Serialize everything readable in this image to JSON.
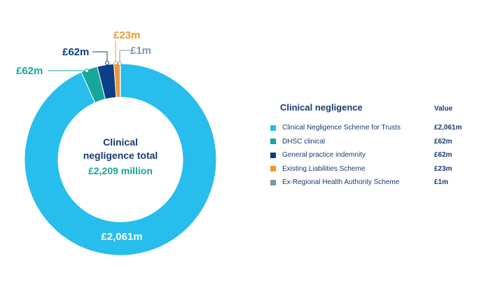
{
  "chart_data": {
    "type": "pie",
    "title": "",
    "center": {
      "line1": "Clinical",
      "line2": "negligence total",
      "line3": "£2,209 million"
    },
    "slices": [
      {
        "label": "Clinical Negligence Scheme for Trusts",
        "value": 2061,
        "display": "£2,061m",
        "color": "#27bdec"
      },
      {
        "label": "DHSC clinical",
        "value": 62,
        "display": "£62m",
        "color": "#15a89a"
      },
      {
        "label": "General practice indemnity",
        "value": 62,
        "display": "£62m",
        "color": "#0b3f86"
      },
      {
        "label": "Existing Liabilities Scheme",
        "value": 23,
        "display": "£23m",
        "color": "#f0982f"
      },
      {
        "label": "Ex-Regional Health Authority Scheme",
        "value": 1,
        "display": "£1m",
        "color": "#7f95ab"
      }
    ],
    "legend": {
      "title": "Clinical negligence",
      "value_header": "Value",
      "placement": "right"
    }
  },
  "colors": {
    "text_dark": "#1a3b6e",
    "center_value": "#15a89a"
  }
}
